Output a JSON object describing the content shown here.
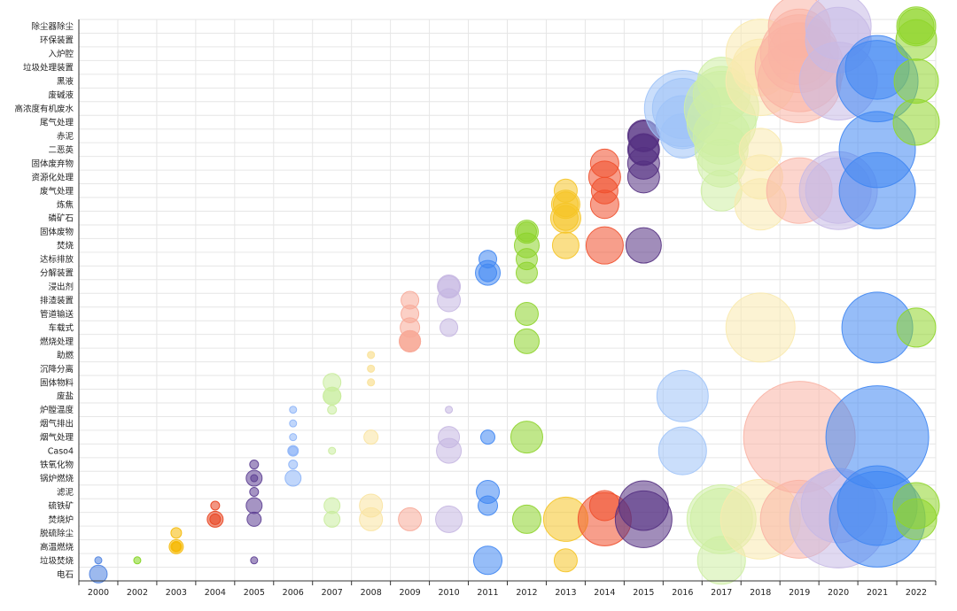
{
  "chart_data": {
    "type": "scatter",
    "subtype": "bubble",
    "grid": true,
    "x_categories": [
      "2000",
      "2002",
      "2003",
      "2004",
      "2005",
      "2006",
      "2007",
      "2008",
      "2009",
      "2010",
      "2011",
      "2012",
      "2013",
      "2014",
      "2015",
      "2016",
      "2017",
      "2018",
      "2019",
      "2020",
      "2021",
      "2022"
    ],
    "y_categories": [
      "电石",
      "垃圾焚烧",
      "高温燃烧",
      "脱硫除尘",
      "焚烧炉",
      "硫铁矿",
      "滤泥",
      "锅炉燃烧",
      "铁氧化物",
      "Caso4",
      "烟气处理",
      "烟气排出",
      "炉膛温度",
      "废盐",
      "固体物料",
      "沉降分离",
      "助燃",
      "燃烧处理",
      "车载式",
      "管道输送",
      "排渣装置",
      "浸出剂",
      "分解装置",
      "达标排放",
      "焚烧",
      "固体废物",
      "磷矿石",
      "炼焦",
      "废气处理",
      "资源化处理",
      "固体废弃物",
      "二恶英",
      "赤泥",
      "尾气处理",
      "高浓度有机废水",
      "废碱液",
      "黑液",
      "垃圾处理装置",
      "入炉腔",
      "环保装置",
      "除尘器除尘"
    ],
    "year_colors": {
      "2000": "#4a7fe0",
      "2002": "#7fd319",
      "2003": "#f5b800",
      "2004": "#e8401c",
      "2005": "#5b3d91",
      "2006": "#8db4f7",
      "2007": "#c9ec9c",
      "2008": "#f9e3a0",
      "2009": "#f7a998",
      "2010": "#c5b6e1",
      "2011": "#3f86f2",
      "2012": "#8dd32a",
      "2013": "#f5c426",
      "2014": "#f04f2b",
      "2015": "#543081",
      "2016": "#9ec3f8",
      "2017": "#cdeea3",
      "2018": "#faeaae",
      "2019": "#f9b2a4",
      "2020": "#c7b9e5",
      "2021": "#3f86f2",
      "2022": "#8fd62a"
    },
    "points": [
      [
        "2000",
        "电石",
        1.0
      ],
      [
        "2000",
        "垃圾焚烧",
        0.4
      ],
      [
        "2002",
        "垃圾焚烧",
        0.4
      ],
      [
        "2003",
        "高温燃烧",
        0.6
      ],
      [
        "2003",
        "高温燃烧",
        0.8
      ],
      [
        "2003",
        "高温燃烧",
        0.5
      ],
      [
        "2003",
        "脱硫除尘",
        0.6
      ],
      [
        "2004",
        "焚烧炉",
        0.9
      ],
      [
        "2004",
        "焚烧炉",
        0.6
      ],
      [
        "2004",
        "硫铁矿",
        0.5
      ],
      [
        "2005",
        "垃圾焚烧",
        0.4
      ],
      [
        "2005",
        "焚烧炉",
        0.8
      ],
      [
        "2005",
        "硫铁矿",
        0.9
      ],
      [
        "2005",
        "滤泥",
        0.5
      ],
      [
        "2005",
        "锅炉燃烧",
        0.9
      ],
      [
        "2005",
        "铁氧化物",
        0.5
      ],
      [
        "2005",
        "锅炉燃烧",
        0.4
      ],
      [
        "2006",
        "锅炉燃烧",
        0.9
      ],
      [
        "2006",
        "铁氧化物",
        0.5
      ],
      [
        "2006",
        "Caso4",
        0.6
      ],
      [
        "2006",
        "Caso4",
        0.5
      ],
      [
        "2006",
        "烟气处理",
        0.4
      ],
      [
        "2006",
        "烟气排出",
        0.4
      ],
      [
        "2006",
        "炉膛温度",
        0.4
      ],
      [
        "2007",
        "焚烧炉",
        0.9
      ],
      [
        "2007",
        "硫铁矿",
        0.9
      ],
      [
        "2007",
        "Caso4",
        0.4
      ],
      [
        "2007",
        "废盐",
        1.0
      ],
      [
        "2007",
        "废盐",
        1.0
      ],
      [
        "2007",
        "固体物料",
        1.0
      ],
      [
        "2007",
        "炉膛温度",
        0.5
      ],
      [
        "2008",
        "焚烧炉",
        1.3
      ],
      [
        "2008",
        "硫铁矿",
        1.3
      ],
      [
        "2008",
        "烟气处理",
        0.8
      ],
      [
        "2008",
        "固体物料",
        0.4
      ],
      [
        "2008",
        "固体物料",
        0.4
      ],
      [
        "2008",
        "沉降分离",
        0.4
      ],
      [
        "2008",
        "沉降分离",
        0.4
      ],
      [
        "2008",
        "助燃",
        0.4
      ],
      [
        "2008",
        "助燃",
        0.4
      ],
      [
        "2009",
        "焚烧炉",
        1.3
      ],
      [
        "2009",
        "燃烧处理",
        1.2
      ],
      [
        "2009",
        "燃烧处理",
        1.2
      ],
      [
        "2009",
        "燃烧处理",
        1.2
      ],
      [
        "2009",
        "车载式",
        1.1
      ],
      [
        "2009",
        "管道输送",
        1.0
      ],
      [
        "2009",
        "排渣装置",
        1.0
      ],
      [
        "2010",
        "焚烧炉",
        1.5
      ],
      [
        "2010",
        "Caso4",
        1.4
      ],
      [
        "2010",
        "烟气处理",
        1.2
      ],
      [
        "2010",
        "炉膛温度",
        0.4
      ],
      [
        "2010",
        "车载式",
        1.0
      ],
      [
        "2010",
        "排渣装置",
        1.3
      ],
      [
        "2010",
        "浸出剂",
        1.3
      ],
      [
        "2010",
        "浸出剂",
        1.2
      ],
      [
        "2011",
        "垃圾焚烧",
        1.6
      ],
      [
        "2011",
        "硫铁矿",
        1.1
      ],
      [
        "2011",
        "滤泥",
        1.3
      ],
      [
        "2011",
        "烟气处理",
        0.8
      ],
      [
        "2011",
        "分解装置",
        1.4
      ],
      [
        "2011",
        "分解装置",
        1.0
      ],
      [
        "2011",
        "达标排放",
        1.0
      ],
      [
        "2012",
        "焚烧炉",
        1.6
      ],
      [
        "2012",
        "烟气处理",
        1.8
      ],
      [
        "2012",
        "燃烧处理",
        1.4
      ],
      [
        "2012",
        "管道输送",
        1.3
      ],
      [
        "2012",
        "分解装置",
        1.2
      ],
      [
        "2012",
        "达标排放",
        1.2
      ],
      [
        "2012",
        "焚烧",
        1.4
      ],
      [
        "2012",
        "固体废物",
        1.3
      ],
      [
        "2012",
        "固体废物",
        1.1
      ],
      [
        "2013",
        "垃圾焚烧",
        1.3
      ],
      [
        "2013",
        "焚烧炉",
        2.5
      ],
      [
        "2013",
        "焚烧",
        1.5
      ],
      [
        "2013",
        "磷矿石",
        1.7
      ],
      [
        "2013",
        "磷矿石",
        1.4
      ],
      [
        "2013",
        "炼焦",
        1.6
      ],
      [
        "2013",
        "炼焦",
        1.4
      ],
      [
        "2013",
        "废气处理",
        1.3
      ],
      [
        "2014",
        "焚烧炉",
        3.0
      ],
      [
        "2014",
        "硫铁矿",
        1.7
      ],
      [
        "2014",
        "焚烧",
        2.1
      ],
      [
        "2014",
        "炼焦",
        1.6
      ],
      [
        "2014",
        "废气处理",
        1.5
      ],
      [
        "2014",
        "资源化处理",
        1.8
      ],
      [
        "2014",
        "固体废弃物",
        1.6
      ],
      [
        "2015",
        "焚烧炉",
        3.2
      ],
      [
        "2015",
        "硫铁矿",
        2.8
      ],
      [
        "2015",
        "焚烧",
        2.0
      ],
      [
        "2015",
        "资源化处理",
        1.8
      ],
      [
        "2015",
        "固体废弃物",
        1.8
      ],
      [
        "2015",
        "二恶英",
        1.8
      ],
      [
        "2015",
        "二恶英",
        1.7
      ],
      [
        "2015",
        "赤泥",
        1.8
      ],
      [
        "2015",
        "赤泥",
        1.7
      ],
      [
        "2016",
        "Caso4",
        2.7
      ],
      [
        "2016",
        "废盐",
        2.9
      ],
      [
        "2016",
        "高浓度有机废水",
        3.4
      ],
      [
        "2016",
        "高浓度有机废水",
        4.3
      ],
      [
        "2016",
        "尾气处理",
        3.0
      ],
      [
        "2016",
        "赤泥",
        2.5
      ],
      [
        "2017",
        "垃圾焚烧",
        2.7
      ],
      [
        "2017",
        "焚烧炉",
        3.5
      ],
      [
        "2017",
        "焚烧炉",
        3.9
      ],
      [
        "2017",
        "废气处理",
        2.3
      ],
      [
        "2017",
        "固体废弃物",
        2.7
      ],
      [
        "2017",
        "二恶英",
        3.0
      ],
      [
        "2017",
        "赤泥",
        3.2
      ],
      [
        "2017",
        "尾气处理",
        3.9
      ],
      [
        "2017",
        "高浓度有机废水",
        4.2
      ],
      [
        "2017",
        "废碱液",
        3.2
      ],
      [
        "2017",
        "黑液",
        2.7
      ],
      [
        "2018",
        "焚烧炉",
        4.5
      ],
      [
        "2018",
        "车载式",
        3.9
      ],
      [
        "2018",
        "炼焦",
        2.9
      ],
      [
        "2018",
        "资源化处理",
        2.5
      ],
      [
        "2018",
        "二恶英",
        2.4
      ],
      [
        "2018",
        "黑液",
        3.9
      ],
      [
        "2018",
        "垃圾处理装置",
        3.2
      ],
      [
        "2018",
        "入炉腔",
        3.9
      ],
      [
        "2019",
        "焚烧炉",
        4.4
      ],
      [
        "2019",
        "烟气处理",
        6.3
      ],
      [
        "2019",
        "废气处理",
        3.7
      ],
      [
        "2019",
        "黑液",
        4.7
      ],
      [
        "2019",
        "垃圾处理装置",
        5.0
      ],
      [
        "2019",
        "入炉腔",
        4.4
      ],
      [
        "2019",
        "入炉腔",
        3.5
      ],
      [
        "2019",
        "环保装置",
        3.5
      ],
      [
        "2019",
        "除尘器除尘",
        3.5
      ],
      [
        "2020",
        "焚烧炉",
        5.5
      ],
      [
        "2020",
        "硫铁矿",
        4.2
      ],
      [
        "2020",
        "废气处理",
        4.4
      ],
      [
        "2020",
        "废气处理",
        3.7
      ],
      [
        "2020",
        "黑液",
        4.4
      ],
      [
        "2020",
        "环保装置",
        3.7
      ],
      [
        "2020",
        "除尘器除尘",
        3.7
      ],
      [
        "2021",
        "焚烧炉",
        5.4
      ],
      [
        "2021",
        "硫铁矿",
        4.5
      ],
      [
        "2021",
        "烟气处理",
        5.8
      ],
      [
        "2021",
        "车载式",
        4.0
      ],
      [
        "2021",
        "废气处理",
        4.3
      ],
      [
        "2021",
        "二恶英",
        4.3
      ],
      [
        "2021",
        "黑液",
        4.6
      ],
      [
        "2021",
        "垃圾处理装置",
        3.6
      ],
      [
        "2022",
        "焚烧炉",
        2.3
      ],
      [
        "2022",
        "硫铁矿",
        2.6
      ],
      [
        "2022",
        "车载式",
        2.2
      ],
      [
        "2022",
        "尾气处理",
        2.6
      ],
      [
        "2022",
        "黑液",
        2.5
      ],
      [
        "2022",
        "环保装置",
        2.3
      ],
      [
        "2022",
        "除尘器除尘",
        2.2
      ],
      [
        "2022",
        "除尘器除尘",
        2.0
      ]
    ]
  }
}
